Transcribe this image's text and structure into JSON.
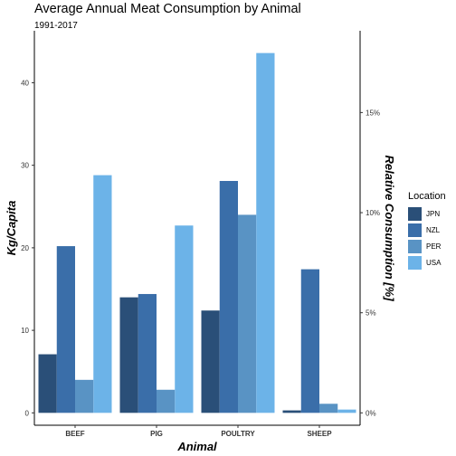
{
  "chart_data": {
    "type": "bar",
    "title": "Average Annual Meat Consumption by Animal",
    "subtitle": "1991-2017",
    "xlabel": "Animal",
    "ylabel": "Kg/Capita",
    "y2label": "Relative Consumption [%]",
    "categories": [
      "BEEF",
      "PIG",
      "POULTRY",
      "SHEEP"
    ],
    "series": [
      {
        "name": "JPN",
        "color": "#2a4f78",
        "values": [
          7.1,
          14.0,
          12.4,
          0.3
        ]
      },
      {
        "name": "NZL",
        "color": "#3a6ea9",
        "values": [
          20.2,
          14.4,
          28.1,
          17.4
        ]
      },
      {
        "name": "PER",
        "color": "#5993c4",
        "values": [
          4.0,
          2.8,
          24.0,
          1.1
        ]
      },
      {
        "name": "USA",
        "color": "#6cb3e8",
        "values": [
          28.8,
          22.7,
          43.6,
          0.4
        ]
      }
    ],
    "ylim": [
      -1.5,
      46.3
    ],
    "yticks": [
      0,
      10,
      20,
      30,
      40
    ],
    "y2ticks": [
      {
        "label": "0%",
        "value": 0
      },
      {
        "label": "5%",
        "value": 12.13
      },
      {
        "label": "10%",
        "value": 24.26
      },
      {
        "label": "15%",
        "value": 36.39
      }
    ],
    "legend_title": "Location",
    "legend_position": "right",
    "grid": false
  }
}
